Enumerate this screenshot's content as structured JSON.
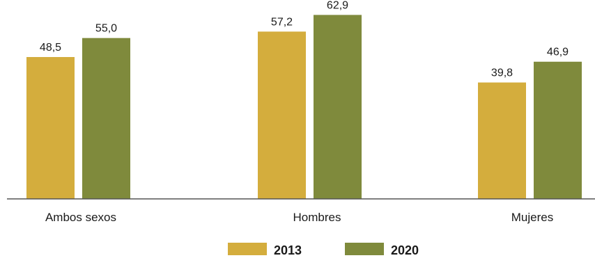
{
  "chart_data": {
    "type": "bar",
    "categories": [
      "Ambos sexos",
      "Hombres",
      "Mujeres"
    ],
    "series": [
      {
        "name": "2013",
        "values": [
          48.5,
          57.2,
          39.8
        ],
        "value_labels": [
          "48,5",
          "57,2",
          "39,8"
        ],
        "color": "#d4ad3d"
      },
      {
        "name": "2020",
        "values": [
          55.0,
          62.9,
          46.9
        ],
        "value_labels": [
          "55,0",
          "62,9",
          "46,9"
        ],
        "color": "#7f8a3c"
      }
    ],
    "ylim": [
      0,
      68
    ],
    "grid": false,
    "legend_position": "bottom-center"
  }
}
